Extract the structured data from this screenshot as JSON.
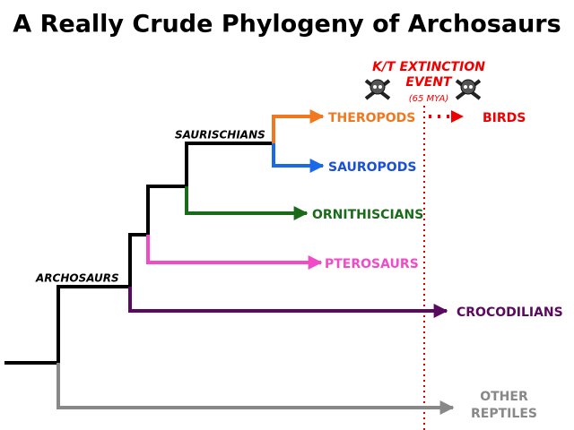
{
  "title": "A Really Crude Phylogeny of Archosaurs",
  "event": {
    "lines": [
      "K/T EXTINCTION",
      "EVENT"
    ],
    "date": "(65 MYA)"
  },
  "clades": [
    "SAURISCHIANS",
    "ARCHOSAURS"
  ],
  "leaves": {
    "theropods": "THEROPODS",
    "sauropods": "SAUROPODS",
    "ornithiscians": "ORNITHISCIANS",
    "pterosaurs": "PTEROSAURS",
    "crocodilians": "CROCODILIANS",
    "other_reptiles": [
      "OTHER",
      "REPTILES"
    ],
    "birds": "BIRDS"
  }
}
